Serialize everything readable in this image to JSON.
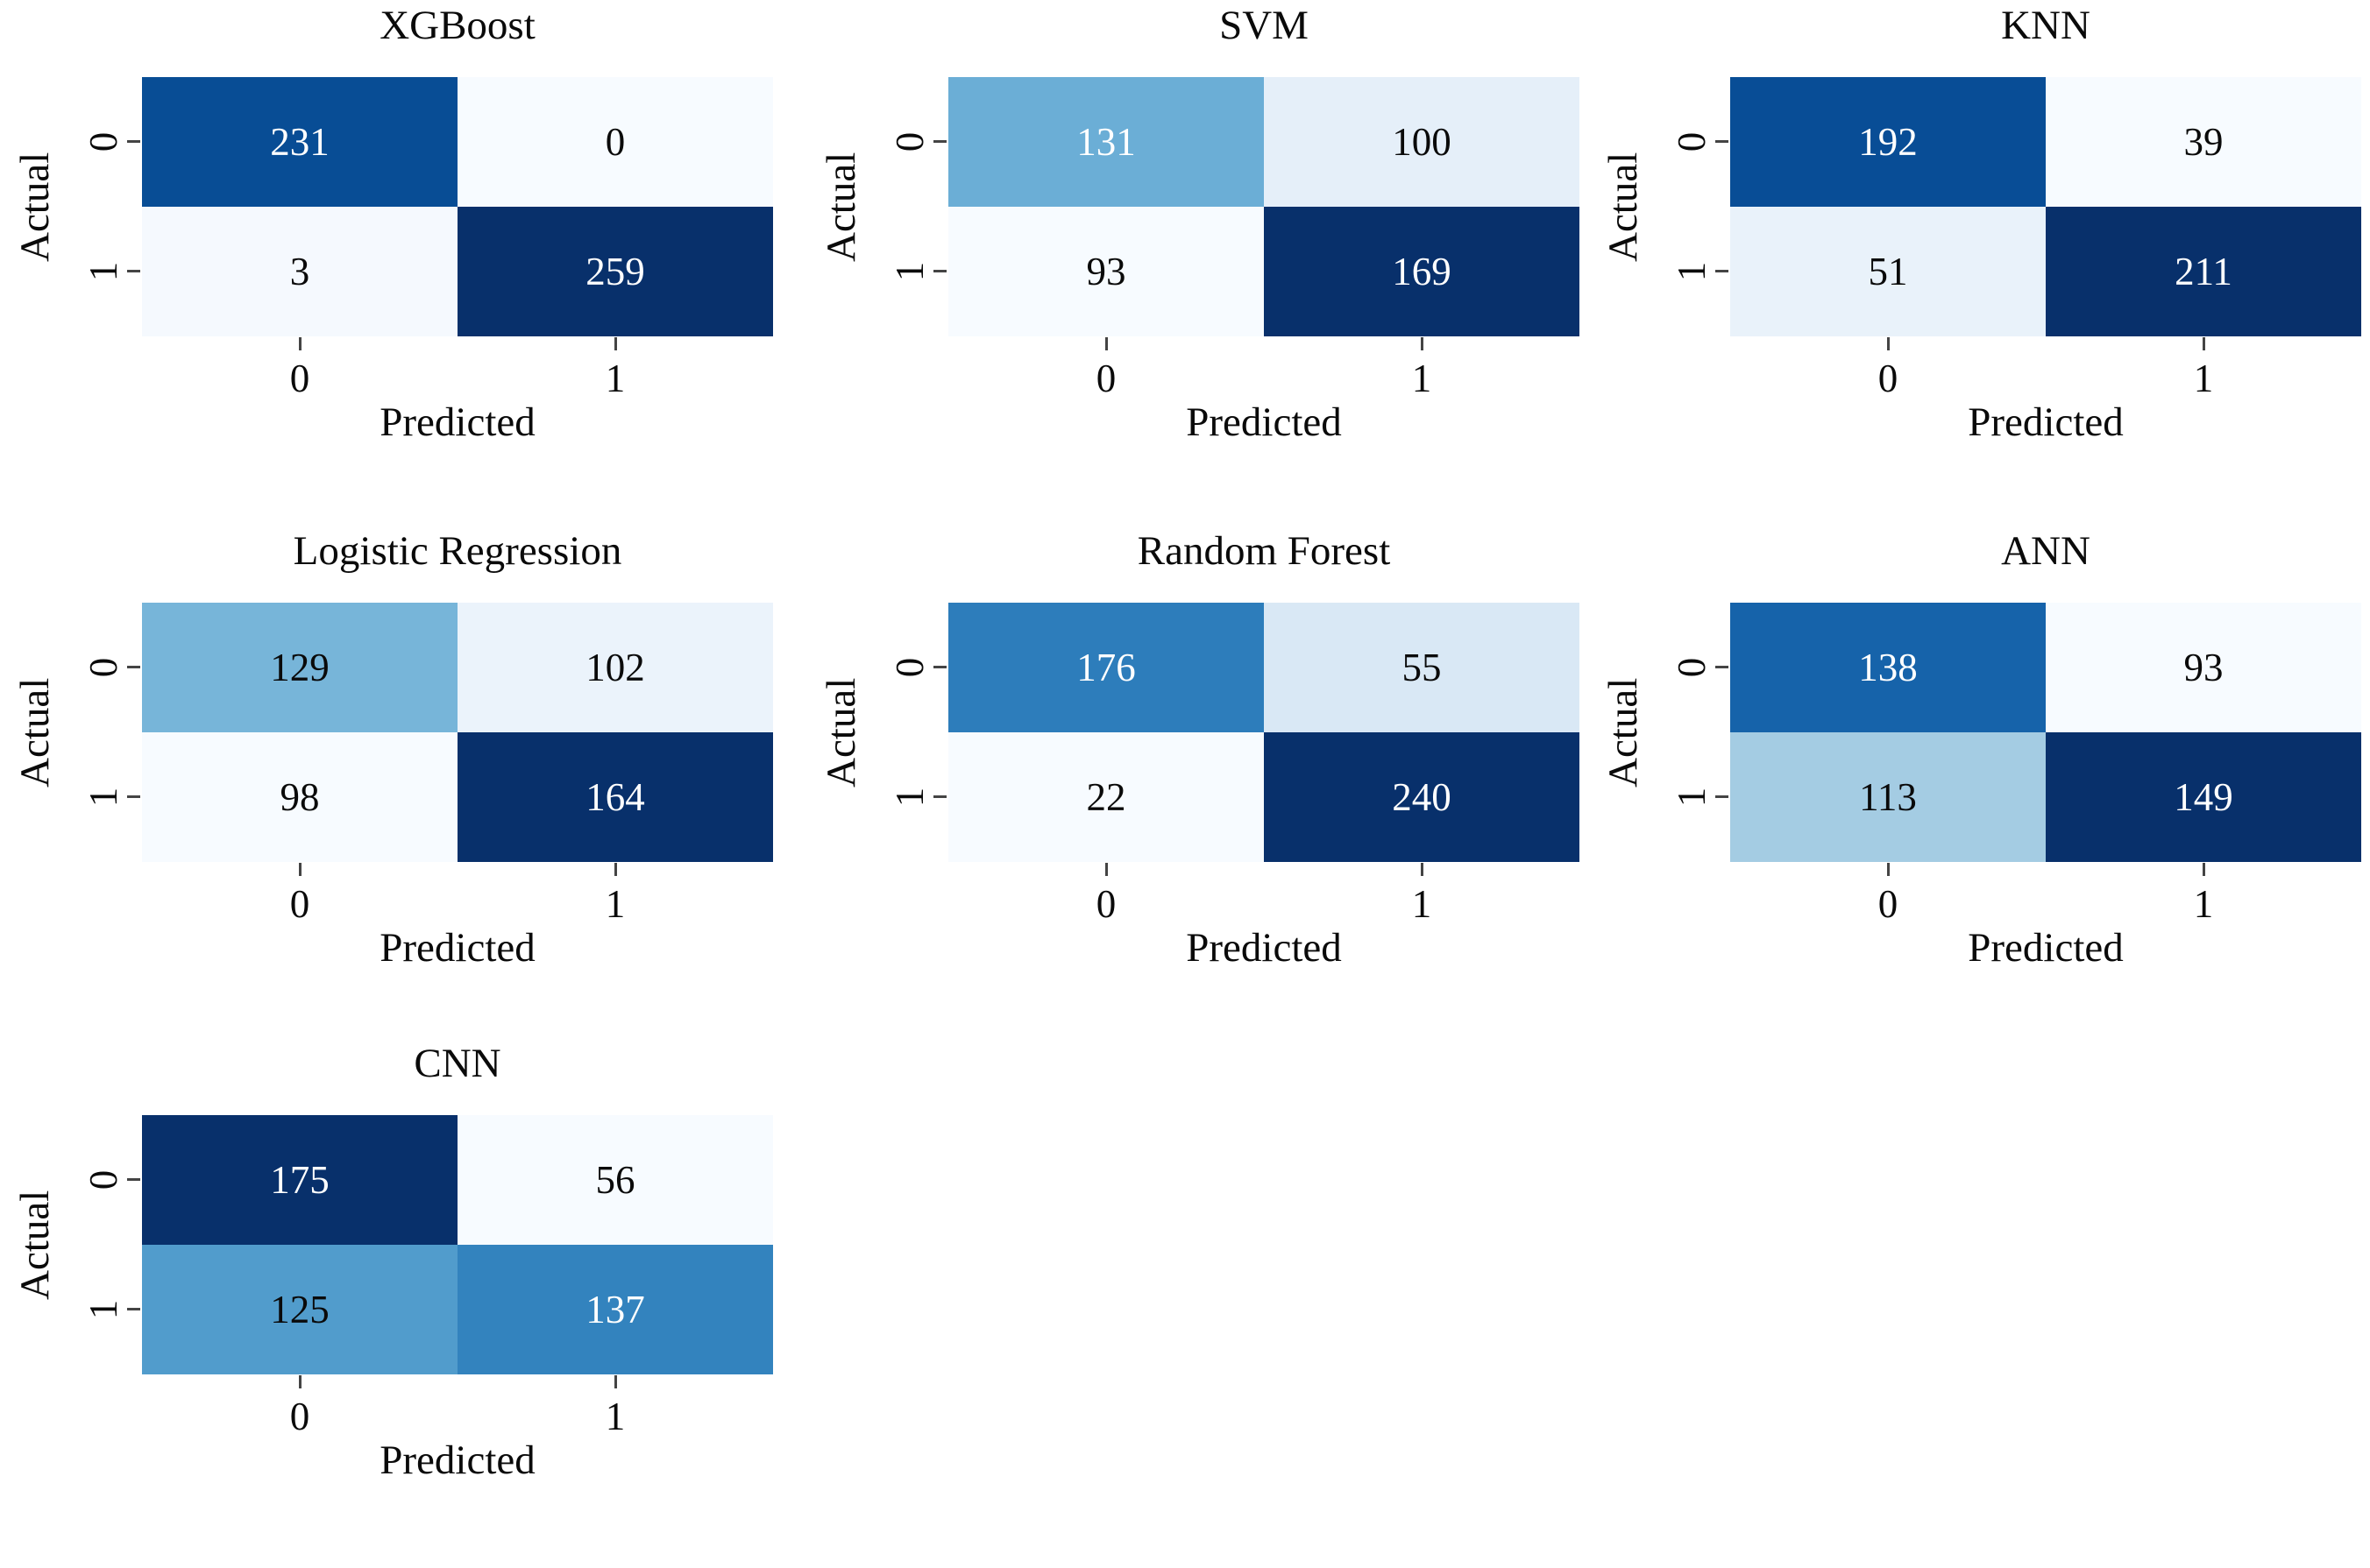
{
  "figure": {
    "description": "Confusion matrices of seven classification models",
    "background": "#ffffff",
    "tick_color": "#444444"
  },
  "chart_data": [
    {
      "type": "heatmap",
      "title": "XGBoost",
      "x_label": "Predicted",
      "y_label": "Actual",
      "x_ticks": [
        "0",
        "1"
      ],
      "y_ticks": [
        "0",
        "1"
      ],
      "values": [
        [
          231,
          0
        ],
        [
          3,
          259
        ]
      ],
      "colormap": "Blues",
      "cells": [
        {
          "value": "231",
          "bg": "#084D95",
          "fg": "#FFFFFF"
        },
        {
          "value": "0",
          "bg": "#F7FBFF",
          "fg": "#0A0A0A"
        },
        {
          "value": "3",
          "bg": "#F5F9FE",
          "fg": "#0A0A0A"
        },
        {
          "value": "259",
          "bg": "#08306B",
          "fg": "#FFFFFF"
        }
      ]
    },
    {
      "type": "heatmap",
      "title": "SVM",
      "x_label": "Predicted",
      "y_label": "Actual",
      "x_ticks": [
        "0",
        "1"
      ],
      "y_ticks": [
        "0",
        "1"
      ],
      "values": [
        [
          131,
          100
        ],
        [
          93,
          169
        ]
      ],
      "colormap": "Blues",
      "cells": [
        {
          "value": "131",
          "bg": "#6BAED6",
          "fg": "#FFFFFF"
        },
        {
          "value": "100",
          "bg": "#E5EFF9",
          "fg": "#0A0A0A"
        },
        {
          "value": "93",
          "bg": "#F7FBFF",
          "fg": "#0A0A0A"
        },
        {
          "value": "169",
          "bg": "#08306B",
          "fg": "#FFFFFF"
        }
      ]
    },
    {
      "type": "heatmap",
      "title": "KNN",
      "x_label": "Predicted",
      "y_label": "Actual",
      "x_ticks": [
        "0",
        "1"
      ],
      "y_ticks": [
        "0",
        "1"
      ],
      "values": [
        [
          192,
          39
        ],
        [
          51,
          211
        ]
      ],
      "colormap": "Blues",
      "cells": [
        {
          "value": "192",
          "bg": "#084D96",
          "fg": "#FFFFFF"
        },
        {
          "value": "39",
          "bg": "#F7FBFF",
          "fg": "#0A0A0A"
        },
        {
          "value": "51",
          "bg": "#E9F2FA",
          "fg": "#0A0A0A"
        },
        {
          "value": "211",
          "bg": "#08306B",
          "fg": "#FFFFFF"
        }
      ]
    },
    {
      "type": "heatmap",
      "title": "Logistic Regression",
      "x_label": "Predicted",
      "y_label": "Actual",
      "x_ticks": [
        "0",
        "1"
      ],
      "y_ticks": [
        "0",
        "1"
      ],
      "values": [
        [
          129,
          102
        ],
        [
          98,
          164
        ]
      ],
      "colormap": "Blues",
      "cells": [
        {
          "value": "129",
          "bg": "#77B5D9",
          "fg": "#0A0A0A"
        },
        {
          "value": "102",
          "bg": "#EBF3FB",
          "fg": "#0A0A0A"
        },
        {
          "value": "98",
          "bg": "#F7FBFF",
          "fg": "#0A0A0A"
        },
        {
          "value": "164",
          "bg": "#08306B",
          "fg": "#FFFFFF"
        }
      ]
    },
    {
      "type": "heatmap",
      "title": "Random Forest",
      "x_label": "Predicted",
      "y_label": "Actual",
      "x_ticks": [
        "0",
        "1"
      ],
      "y_ticks": [
        "0",
        "1"
      ],
      "values": [
        [
          176,
          55
        ],
        [
          22,
          240
        ]
      ],
      "colormap": "Blues",
      "cells": [
        {
          "value": "176",
          "bg": "#2D7DBB",
          "fg": "#FFFFFF"
        },
        {
          "value": "55",
          "bg": "#D9E8F5",
          "fg": "#0A0A0A"
        },
        {
          "value": "22",
          "bg": "#F7FBFF",
          "fg": "#0A0A0A"
        },
        {
          "value": "240",
          "bg": "#08306B",
          "fg": "#FFFFFF"
        }
      ]
    },
    {
      "type": "heatmap",
      "title": "ANN",
      "x_label": "Predicted",
      "y_label": "Actual",
      "x_ticks": [
        "0",
        "1"
      ],
      "y_ticks": [
        "0",
        "1"
      ],
      "values": [
        [
          138,
          93
        ],
        [
          113,
          149
        ]
      ],
      "colormap": "Blues",
      "cells": [
        {
          "value": "138",
          "bg": "#1663AA",
          "fg": "#FFFFFF"
        },
        {
          "value": "93",
          "bg": "#F7FBFF",
          "fg": "#0A0A0A"
        },
        {
          "value": "113",
          "bg": "#A4CCE3",
          "fg": "#0A0A0A"
        },
        {
          "value": "149",
          "bg": "#08306B",
          "fg": "#FFFFFF"
        }
      ]
    },
    {
      "type": "heatmap",
      "title": "CNN",
      "x_label": "Predicted",
      "y_label": "Actual",
      "x_ticks": [
        "0",
        "1"
      ],
      "y_ticks": [
        "0",
        "1"
      ],
      "values": [
        [
          175,
          56
        ],
        [
          125,
          137
        ]
      ],
      "colormap": "Blues",
      "cells": [
        {
          "value": "175",
          "bg": "#08306B",
          "fg": "#FFFFFF"
        },
        {
          "value": "56",
          "bg": "#F7FBFF",
          "fg": "#0A0A0A"
        },
        {
          "value": "125",
          "bg": "#519CCC",
          "fg": "#0A0A0A"
        },
        {
          "value": "137",
          "bg": "#3383BE",
          "fg": "#FFFFFF"
        }
      ]
    }
  ]
}
